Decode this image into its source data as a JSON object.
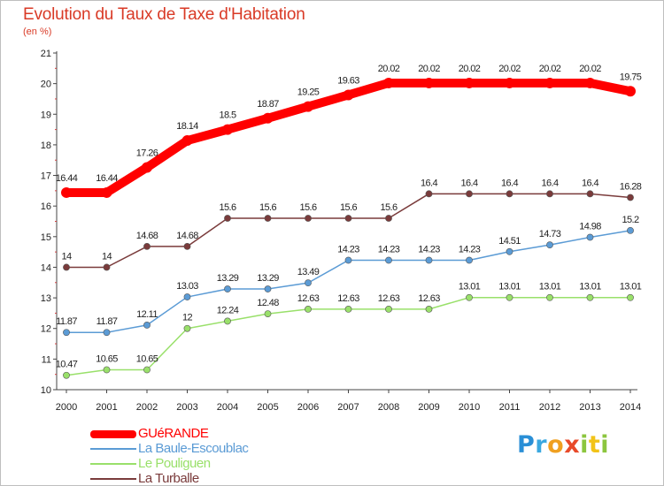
{
  "title": "Evolution du Taux de Taxe d'Habitation",
  "subtitle": "(en %)",
  "logo": {
    "letters": [
      {
        "ch": "P",
        "color": "#2a8fd6"
      },
      {
        "ch": "r",
        "color": "#3aa8e0"
      },
      {
        "ch": "o",
        "color": "#f0a020"
      },
      {
        "ch": "x",
        "color": "#e84a2a"
      },
      {
        "ch": "i",
        "color": "#8cc63f"
      },
      {
        "ch": "t",
        "color": "#f2c318"
      },
      {
        "ch": "i",
        "color": "#8cc63f"
      }
    ]
  },
  "chart_data": {
    "type": "line",
    "x": [
      "2000",
      "2001",
      "2002",
      "2003",
      "2004",
      "2005",
      "2006",
      "2007",
      "2008",
      "2009",
      "2010",
      "2011",
      "2012",
      "2013",
      "2014"
    ],
    "ylim": [
      10,
      21
    ],
    "yticks": [
      10,
      11,
      12,
      13,
      14,
      15,
      16,
      17,
      18,
      19,
      20,
      21
    ],
    "grid": false,
    "legend_position": "bottom-left",
    "series": [
      {
        "name": "GUéRANDE",
        "color": "#ff0000",
        "values": [
          16.44,
          16.44,
          17.26,
          18.14,
          18.5,
          18.87,
          19.25,
          19.63,
          20.02,
          20.02,
          20.02,
          20.02,
          20.02,
          20.02,
          19.75
        ],
        "labels": [
          "16.44",
          "16.44",
          "17.26",
          "18.14",
          "18.5",
          "18.87",
          "19.25",
          "19.63",
          "20.02",
          "20.02",
          "20.02",
          "20.02",
          "20.02",
          "20.02",
          "19.75"
        ]
      },
      {
        "name": "La Baule-Escoublac",
        "color": "#5b9bd5",
        "values": [
          11.87,
          11.87,
          12.11,
          13.03,
          13.29,
          13.29,
          13.49,
          14.23,
          14.23,
          14.23,
          14.23,
          14.51,
          14.73,
          14.98,
          15.2
        ],
        "labels": [
          "11.87",
          "11.87",
          "12.11",
          "13.03",
          "13.29",
          "13.29",
          "13.49",
          "14.23",
          "14.23",
          "14.23",
          "14.23",
          "14.51",
          "14.73",
          "14.98",
          "15.2"
        ]
      },
      {
        "name": "Le Pouliguen",
        "color": "#99e06a",
        "values": [
          10.47,
          10.65,
          10.65,
          12,
          12.24,
          12.48,
          12.63,
          12.63,
          12.63,
          12.63,
          13.01,
          13.01,
          13.01,
          13.01,
          13.01
        ],
        "labels": [
          "10.47",
          "10.65",
          "10.65",
          "12",
          "12.24",
          "12.48",
          "12.63",
          "12.63",
          "12.63",
          "12.63",
          "13.01",
          "13.01",
          "13.01",
          "13.01",
          "13.01"
        ]
      },
      {
        "name": "La Turballe",
        "color": "#7a3b3b",
        "values": [
          14,
          14,
          14.68,
          14.68,
          15.6,
          15.6,
          15.6,
          15.6,
          15.6,
          16.4,
          16.4,
          16.4,
          16.4,
          16.4,
          16.28
        ],
        "labels": [
          "14",
          "14",
          "14.68",
          "14.68",
          "15.6",
          "15.6",
          "15.6",
          "15.6",
          "15.6",
          "16.4",
          "16.4",
          "16.4",
          "16.4",
          "16.4",
          "16.28"
        ]
      }
    ]
  }
}
